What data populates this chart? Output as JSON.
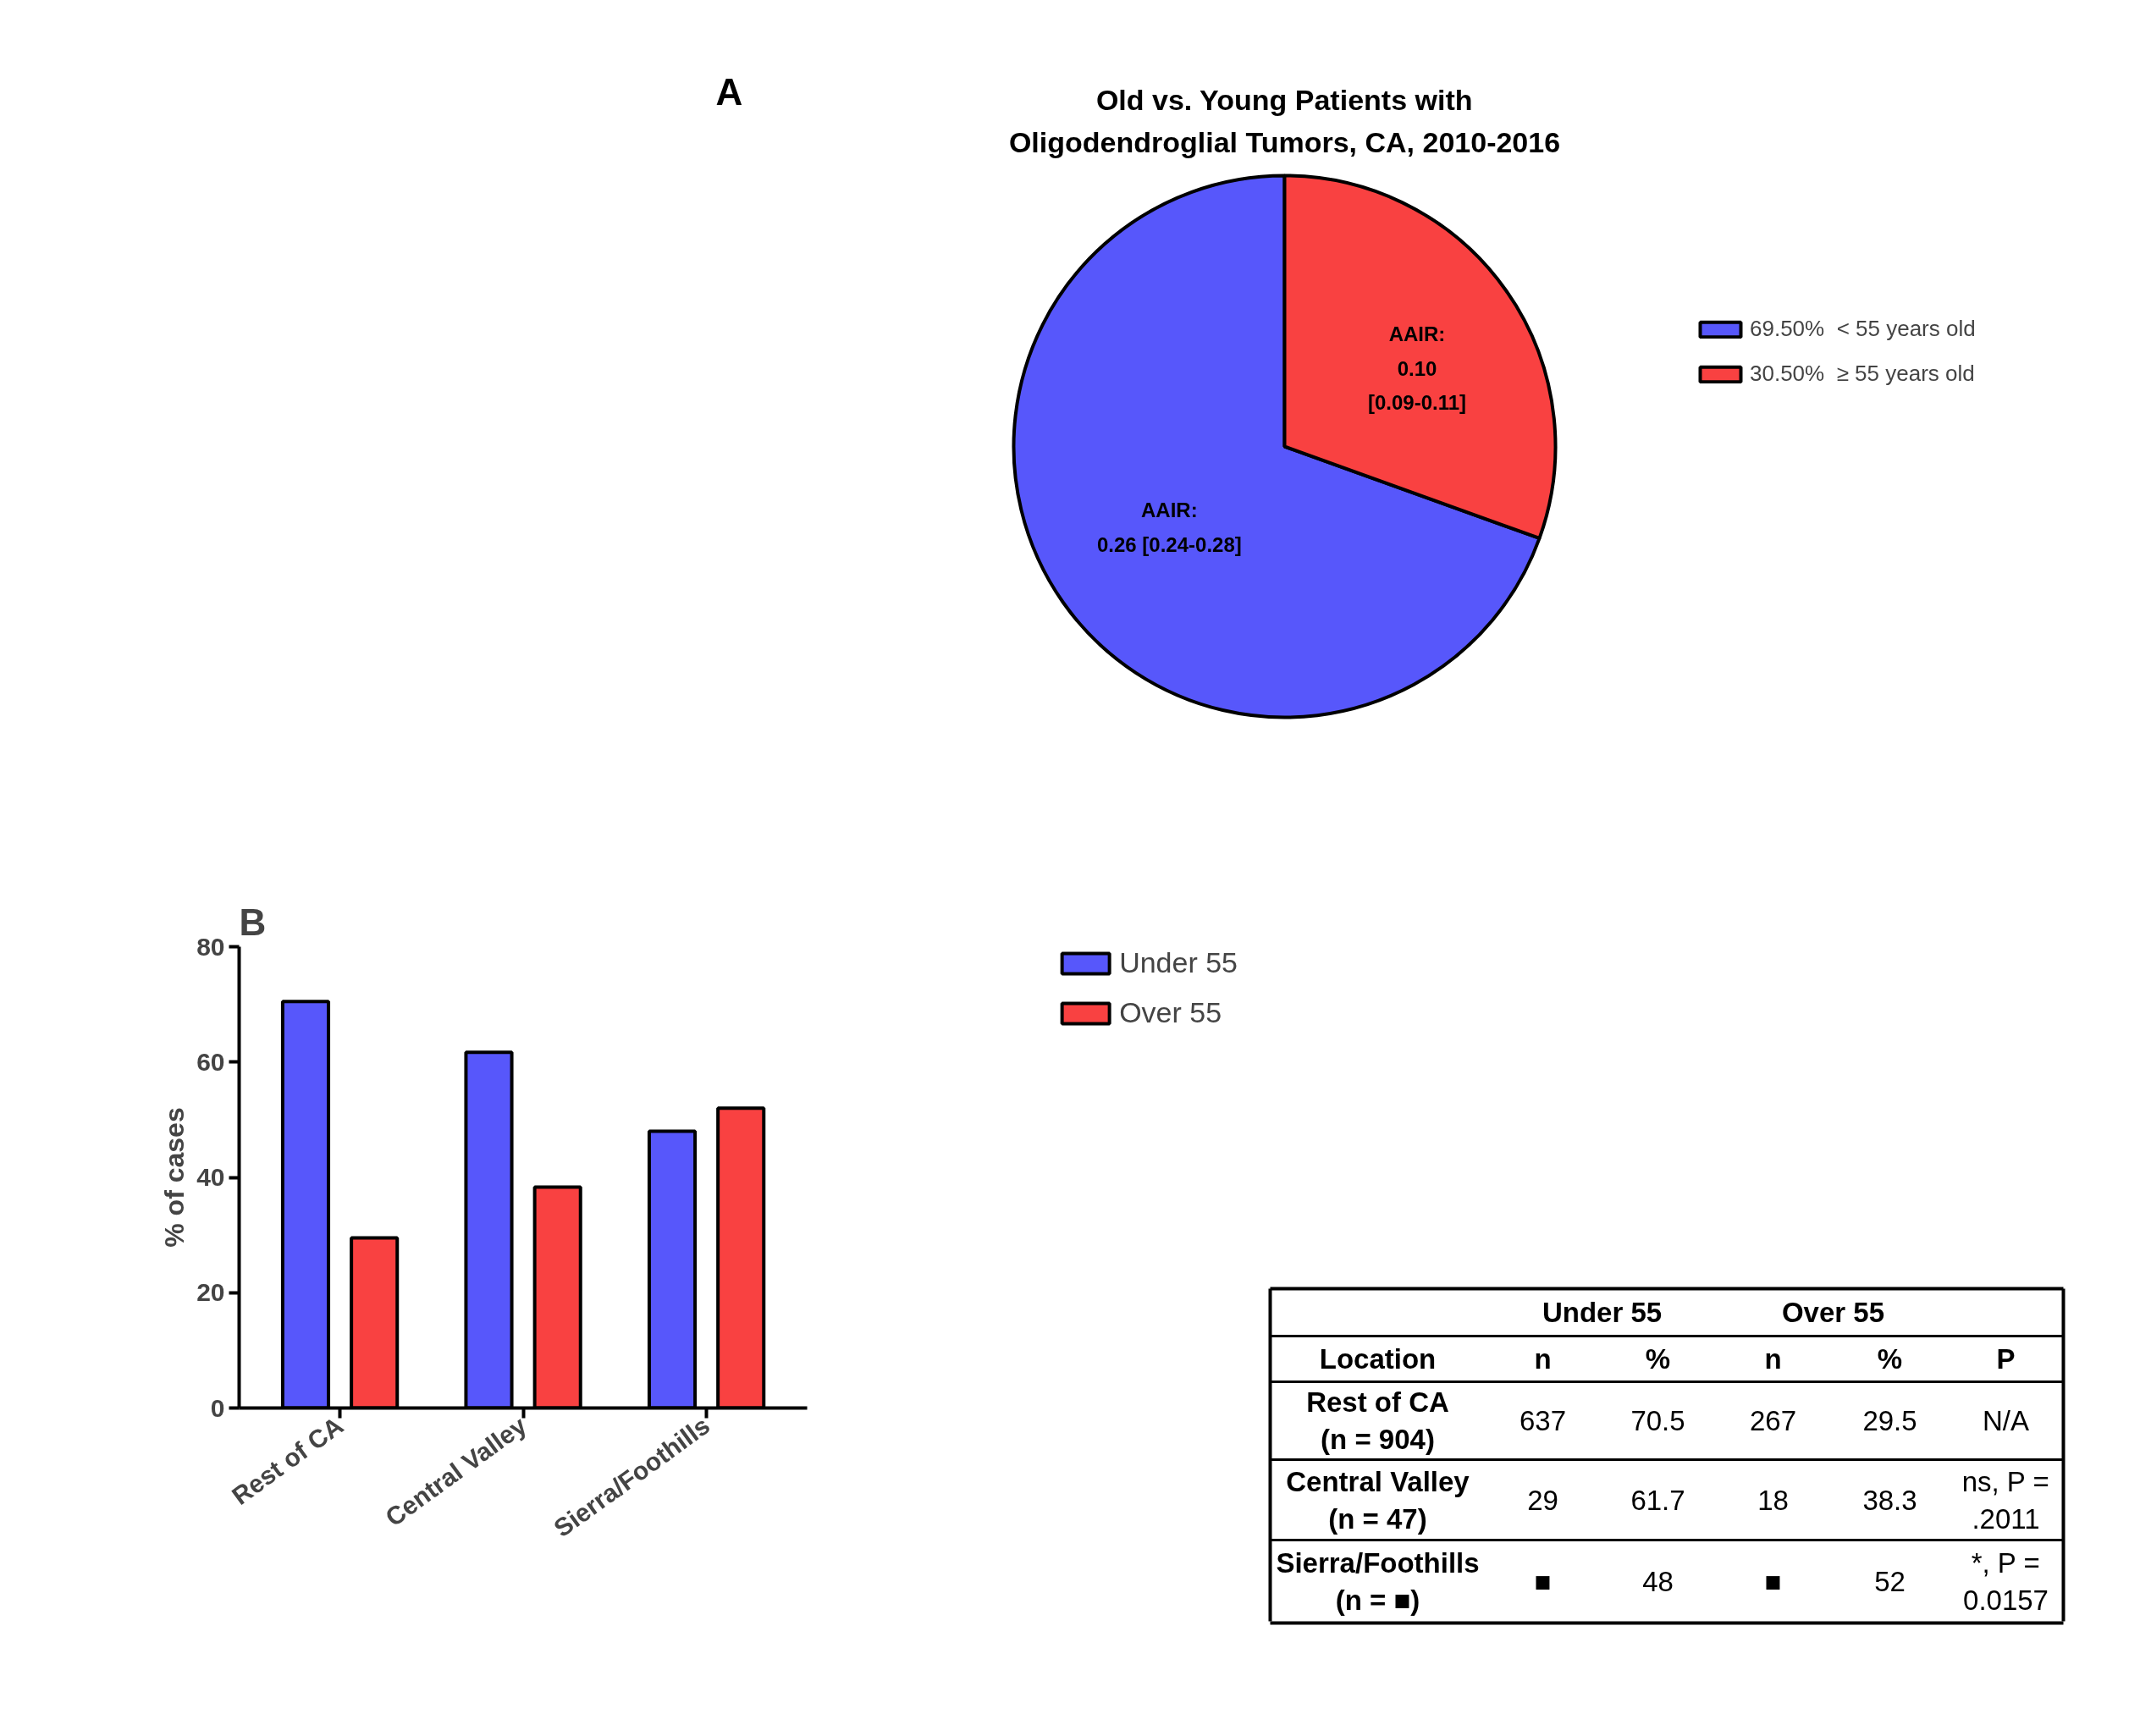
{
  "chart_data": [
    {
      "type": "pie",
      "title": "Old vs. Young Patients with\nOligodendroglial Tumors, CA, 2010-2016",
      "categories": [
        "< 55 years old",
        "≥ 55 years old"
      ],
      "values": [
        69.5,
        30.5
      ],
      "value_labels": [
        "69.50%",
        "30.50%"
      ],
      "colors": [
        "#5757fb",
        "#f94141"
      ],
      "legend": "right",
      "annotations": [
        "A",
        "AAIR:\n0.26 [0.24-0.28]",
        "AAIR:\n0.10\n[0.09-0.11]"
      ]
    },
    {
      "type": "bar",
      "categories": [
        "Rest of CA",
        "Central Valley",
        "Sierra/Foothills"
      ],
      "ylabel": "% of cases",
      "ylim": [
        0,
        80
      ],
      "yticks": [
        0,
        20,
        40,
        60,
        80
      ],
      "grid": false,
      "legend": "top right",
      "series": [
        {
          "name": "Under 55",
          "color": "#5757fb",
          "values": [
            70.5,
            61.7,
            48
          ]
        },
        {
          "name": "Over 55",
          "color": "#f94141",
          "values": [
            29.5,
            38.3,
            52
          ]
        }
      ],
      "annotations": [
        "B",
        "Under 55",
        "Over 55",
        "Location",
        "n",
        "%",
        "n",
        "%",
        "P",
        "Rest of CA\n(n = 904)",
        "637",
        "70.5",
        "267",
        "29.5",
        "N/A",
        "Central Valley\n(n = 47)",
        "29",
        "61.7",
        "18",
        "38.3",
        "ns, P =\n.2011",
        "Sierra/Foothills\n(n = ■)",
        "■",
        "48",
        "■",
        "52",
        "*, P =\n0.0157"
      ]
    }
  ]
}
